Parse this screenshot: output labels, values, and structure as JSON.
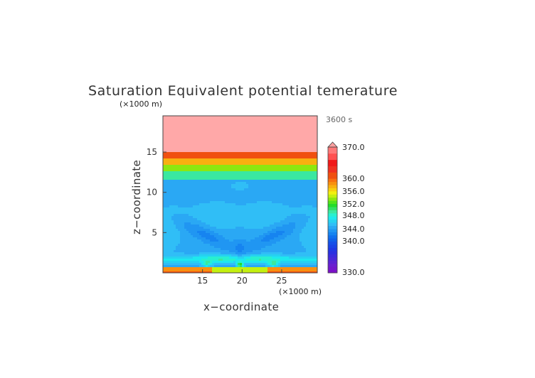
{
  "chart_data": {
    "type": "heatmap",
    "title": "Saturation Equivalent potential temerature",
    "time_label": "3600 s",
    "xlabel": "x−coordinate",
    "ylabel": "z−coordinate",
    "x_unit": "(×1000 m)",
    "y_unit": "(×1000 m)",
    "xlim": [
      10,
      29.5
    ],
    "ylim": [
      0,
      19.5
    ],
    "x_ticks": [
      15,
      20,
      25
    ],
    "y_ticks": [
      5,
      10,
      15
    ],
    "grid": false,
    "legend_placement": "right",
    "colorbar": {
      "tick_labels": [
        "370.0",
        "360.0",
        "356.0",
        "352.0",
        "348.0",
        "344.0",
        "340.0",
        "330.0"
      ],
      "tick_values": [
        370,
        360,
        356,
        352,
        348,
        344,
        340,
        330
      ],
      "levels": [
        330,
        331,
        332,
        333,
        334,
        335,
        336,
        337,
        338,
        339,
        340,
        341,
        342,
        343,
        344,
        345,
        346,
        347,
        348,
        349,
        350,
        351,
        352,
        353,
        354,
        355,
        356,
        357,
        358,
        359,
        360,
        362,
        364,
        366,
        368,
        370
      ],
      "colors": [
        "#7a10c8",
        "#7418cc",
        "#6a20d0",
        "#5a24d4",
        "#4a28d8",
        "#3a2cdc",
        "#2a30e0",
        "#2038e4",
        "#1a44e6",
        "#1650e8",
        "#1060ea",
        "#1070ee",
        "#1684f0",
        "#2096f2",
        "#2aa8f4",
        "#30bef6",
        "#26d2f0",
        "#1ee8ee",
        "#28f0d0",
        "#3ae8a0",
        "#30e064",
        "#22dc28",
        "#50e418",
        "#8ce810",
        "#c4f010",
        "#f2f010",
        "#f8d010",
        "#f8b010",
        "#f89010",
        "#f87010",
        "#f05010",
        "#f03020",
        "#f01818",
        "#ff5050",
        "#ff7878",
        "#ffa8a8"
      ],
      "extend_max_color": "#ffa0a0"
    },
    "field_description_levels": [
      {
        "z_from": 15.0,
        "z_to": 19.5,
        "value": 370
      },
      {
        "z_from": 14.2,
        "z_to": 15.0,
        "value": 360
      },
      {
        "z_from": 13.4,
        "z_to": 14.2,
        "value": 356
      },
      {
        "z_from": 12.6,
        "z_to": 13.4,
        "value": 352
      },
      {
        "z_from": 11.6,
        "z_to": 12.6,
        "value": 348
      },
      {
        "z_from": 0.0,
        "z_to": 11.6,
        "value": 345
      }
    ]
  }
}
